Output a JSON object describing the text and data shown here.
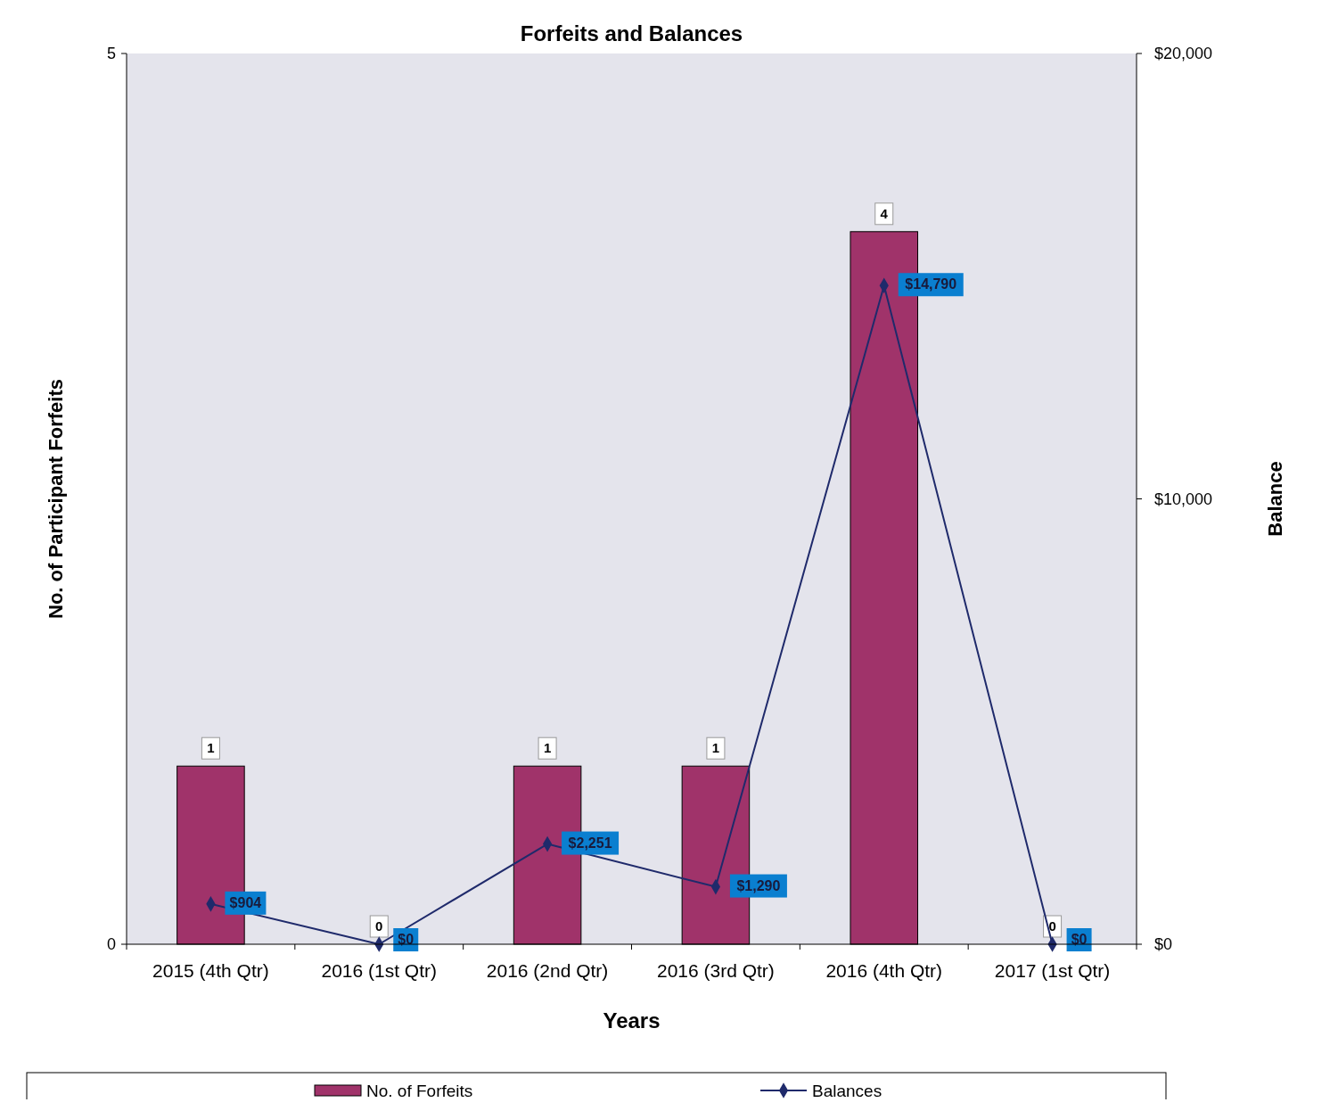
{
  "chart_data": {
    "type": "bar",
    "title": "Forfeits and Balances",
    "xlabel": "Years",
    "ylabel": "No. of Participant Forfeits",
    "y2label": "Balance",
    "categories": [
      "2015 (4th Qtr)",
      "2016 (1st Qtr)",
      "2016 (2nd Qtr)",
      "2016 (3rd Qtr)",
      "2016 (4th Qtr)",
      "2017 (1st Qtr)"
    ],
    "series": [
      {
        "name": "No. of Forfeits",
        "color": "#a0336a",
        "values": [
          1,
          0,
          1,
          1,
          4,
          0
        ],
        "value_labels": [
          "1",
          "0",
          "1",
          "1",
          "4",
          "0"
        ]
      },
      {
        "name": "Balances",
        "type": "line",
        "axis": "y2",
        "color": "#1f2a6b",
        "values": [
          904,
          0,
          2251,
          1290,
          14790,
          0
        ],
        "value_labels": [
          "$904",
          "$0",
          "$2,251",
          "$1,290",
          "$14,790",
          "$0"
        ]
      }
    ],
    "ylim": [
      0,
      5
    ],
    "yticks": [
      0,
      5
    ],
    "y2lim": [
      0,
      20000
    ],
    "y2ticks": [
      {
        "value": 0,
        "label": "$0"
      },
      {
        "value": 10000,
        "label": "$10,000"
      },
      {
        "value": 20000,
        "label": "$20,000"
      }
    ],
    "marker": "diamond",
    "line_style": "solid",
    "legend": "bottom"
  }
}
